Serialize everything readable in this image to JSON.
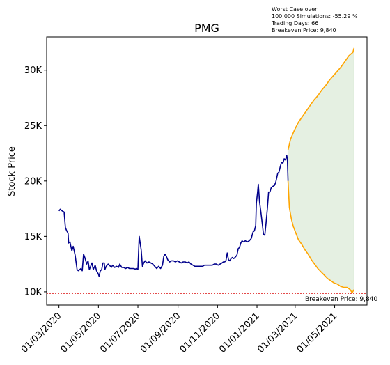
{
  "chart_data": {
    "type": "line",
    "title": "PMG",
    "ylabel": "Stock Price",
    "xlabel": "",
    "annotation_lines": [
      "Worst Case over",
      "100,000 Simulations: -55.29 %",
      "Trading Days: 66",
      "Breakeven Price: 9,840"
    ],
    "breakeven_label": "Breakeven Price: 9,840",
    "breakeven_price": 9840,
    "ylim": [
      8800,
      33000
    ],
    "xlim": [
      "2020-02-11",
      "2021-06-20"
    ],
    "grid": false,
    "y_ticks": [
      {
        "value": 10000,
        "label": "10K"
      },
      {
        "value": 15000,
        "label": "15K"
      },
      {
        "value": 20000,
        "label": "20K"
      },
      {
        "value": 25000,
        "label": "25K"
      },
      {
        "value": 30000,
        "label": "30K"
      }
    ],
    "x_ticks": [
      {
        "date": "2020-03-01",
        "label": "01/03/2020"
      },
      {
        "date": "2020-05-01",
        "label": "01/05/2020"
      },
      {
        "date": "2020-07-01",
        "label": "01/07/2020"
      },
      {
        "date": "2020-09-01",
        "label": "01/09/2020"
      },
      {
        "date": "2020-11-01",
        "label": "01/11/2020"
      },
      {
        "date": "2021-01-01",
        "label": "01/01/2021"
      },
      {
        "date": "2021-03-01",
        "label": "01/03/2021"
      },
      {
        "date": "2021-05-01",
        "label": "01/05/2021"
      }
    ],
    "colors": {
      "history": "#00008b",
      "projection": "#ffa500",
      "band_fill": "#e5f0e2",
      "band_edge": "#b7d7b1",
      "breakeven": "#e03030"
    },
    "series": [
      {
        "values": [
          [
            "2020-03-01",
            17300
          ],
          [
            "2020-03-03",
            17450
          ],
          [
            "2020-03-06",
            17300
          ],
          [
            "2020-03-09",
            17200
          ],
          [
            "2020-03-11",
            15800
          ],
          [
            "2020-03-13",
            15500
          ],
          [
            "2020-03-15",
            15300
          ],
          [
            "2020-03-16",
            14400
          ],
          [
            "2020-03-18",
            14500
          ],
          [
            "2020-03-19",
            14200
          ],
          [
            "2020-03-21",
            13700
          ],
          [
            "2020-03-23",
            14100
          ],
          [
            "2020-03-26",
            13300
          ],
          [
            "2020-03-29",
            12000
          ],
          [
            "2020-03-31",
            11900
          ],
          [
            "2020-04-02",
            12000
          ],
          [
            "2020-04-04",
            12100
          ],
          [
            "2020-04-06",
            11900
          ],
          [
            "2020-04-08",
            13400
          ],
          [
            "2020-04-10",
            13100
          ],
          [
            "2020-04-13",
            12500
          ],
          [
            "2020-04-15",
            12800
          ],
          [
            "2020-04-17",
            12000
          ],
          [
            "2020-04-19",
            12300
          ],
          [
            "2020-04-21",
            12600
          ],
          [
            "2020-04-23",
            12000
          ],
          [
            "2020-04-26",
            12400
          ],
          [
            "2020-04-28",
            11900
          ],
          [
            "2020-05-01",
            11600
          ],
          [
            "2020-05-02",
            11400
          ],
          [
            "2020-05-04",
            11900
          ],
          [
            "2020-05-06",
            12000
          ],
          [
            "2020-05-08",
            12600
          ],
          [
            "2020-05-10",
            12600
          ],
          [
            "2020-05-11",
            12000
          ],
          [
            "2020-05-13",
            12300
          ],
          [
            "2020-05-16",
            12500
          ],
          [
            "2020-05-18",
            12400
          ],
          [
            "2020-05-21",
            12200
          ],
          [
            "2020-05-23",
            12400
          ],
          [
            "2020-05-26",
            12200
          ],
          [
            "2020-05-29",
            12300
          ],
          [
            "2020-06-01",
            12200
          ],
          [
            "2020-06-03",
            12500
          ],
          [
            "2020-06-06",
            12200
          ],
          [
            "2020-06-09",
            12200
          ],
          [
            "2020-06-12",
            12100
          ],
          [
            "2020-06-15",
            12200
          ],
          [
            "2020-06-18",
            12100
          ],
          [
            "2020-06-21",
            12100
          ],
          [
            "2020-06-24",
            12100
          ],
          [
            "2020-06-27",
            12050
          ],
          [
            "2020-06-29",
            12100
          ],
          [
            "2020-07-01",
            12000
          ],
          [
            "2020-07-03",
            15000
          ],
          [
            "2020-07-06",
            13800
          ],
          [
            "2020-07-08",
            12300
          ],
          [
            "2020-07-10",
            12600
          ],
          [
            "2020-07-12",
            12800
          ],
          [
            "2020-07-15",
            12600
          ],
          [
            "2020-07-18",
            12700
          ],
          [
            "2020-07-21",
            12600
          ],
          [
            "2020-07-24",
            12500
          ],
          [
            "2020-07-27",
            12300
          ],
          [
            "2020-07-30",
            12100
          ],
          [
            "2020-08-02",
            12300
          ],
          [
            "2020-08-05",
            12100
          ],
          [
            "2020-08-08",
            12400
          ],
          [
            "2020-08-10",
            13200
          ],
          [
            "2020-08-12",
            13400
          ],
          [
            "2020-08-14",
            13200
          ],
          [
            "2020-08-16",
            12900
          ],
          [
            "2020-08-19",
            12700
          ],
          [
            "2020-08-22",
            12800
          ],
          [
            "2020-08-25",
            12800
          ],
          [
            "2020-08-28",
            12700
          ],
          [
            "2020-08-31",
            12800
          ],
          [
            "2020-09-03",
            12700
          ],
          [
            "2020-09-06",
            12600
          ],
          [
            "2020-09-09",
            12700
          ],
          [
            "2020-09-12",
            12700
          ],
          [
            "2020-09-15",
            12600
          ],
          [
            "2020-09-18",
            12700
          ],
          [
            "2020-09-21",
            12500
          ],
          [
            "2020-09-24",
            12400
          ],
          [
            "2020-09-27",
            12300
          ],
          [
            "2020-09-30",
            12300
          ],
          [
            "2020-10-03",
            12300
          ],
          [
            "2020-10-06",
            12300
          ],
          [
            "2020-10-09",
            12300
          ],
          [
            "2020-10-12",
            12400
          ],
          [
            "2020-10-15",
            12400
          ],
          [
            "2020-10-18",
            12400
          ],
          [
            "2020-10-21",
            12400
          ],
          [
            "2020-10-24",
            12400
          ],
          [
            "2020-10-27",
            12500
          ],
          [
            "2020-10-30",
            12500
          ],
          [
            "2020-11-02",
            12400
          ],
          [
            "2020-11-05",
            12500
          ],
          [
            "2020-11-08",
            12600
          ],
          [
            "2020-11-10",
            12700
          ],
          [
            "2020-11-12",
            12700
          ],
          [
            "2020-11-14",
            12800
          ],
          [
            "2020-11-16",
            13500
          ],
          [
            "2020-11-18",
            12900
          ],
          [
            "2020-11-20",
            12800
          ],
          [
            "2020-11-22",
            13000
          ],
          [
            "2020-11-24",
            13100
          ],
          [
            "2020-11-26",
            13000
          ],
          [
            "2020-11-28",
            13100
          ],
          [
            "2020-12-01",
            13300
          ],
          [
            "2020-12-03",
            13900
          ],
          [
            "2020-12-05",
            14000
          ],
          [
            "2020-12-07",
            14400
          ],
          [
            "2020-12-09",
            14600
          ],
          [
            "2020-12-11",
            14500
          ],
          [
            "2020-12-14",
            14600
          ],
          [
            "2020-12-17",
            14500
          ],
          [
            "2020-12-20",
            14600
          ],
          [
            "2020-12-23",
            14800
          ],
          [
            "2020-12-26",
            15400
          ],
          [
            "2020-12-28",
            15500
          ],
          [
            "2020-12-30",
            16000
          ],
          [
            "2020-12-31",
            18000
          ],
          [
            "2021-01-02",
            19000
          ],
          [
            "2021-01-03",
            19700
          ],
          [
            "2021-01-05",
            18100
          ],
          [
            "2021-01-07",
            17200
          ],
          [
            "2021-01-09",
            16200
          ],
          [
            "2021-01-11",
            15200
          ],
          [
            "2021-01-13",
            15100
          ],
          [
            "2021-01-15",
            16200
          ],
          [
            "2021-01-17",
            17500
          ],
          [
            "2021-01-19",
            19000
          ],
          [
            "2021-01-21",
            19000
          ],
          [
            "2021-01-23",
            19400
          ],
          [
            "2021-01-25",
            19500
          ],
          [
            "2021-01-28",
            19600
          ],
          [
            "2021-01-30",
            19900
          ],
          [
            "2021-02-02",
            20700
          ],
          [
            "2021-02-04",
            20800
          ],
          [
            "2021-02-06",
            21300
          ],
          [
            "2021-02-08",
            21700
          ],
          [
            "2021-02-10",
            21600
          ],
          [
            "2021-02-12",
            22000
          ],
          [
            "2021-02-14",
            21900
          ],
          [
            "2021-02-16",
            22300
          ],
          [
            "2021-02-17",
            21900
          ],
          [
            "2021-02-18",
            20000
          ]
        ]
      },
      {
        "values": [
          [
            "2021-02-18",
            22800
          ],
          [
            "2021-02-22",
            23800
          ],
          [
            "2021-02-28",
            24600
          ],
          [
            "2021-03-06",
            25300
          ],
          [
            "2021-03-12",
            25800
          ],
          [
            "2021-03-18",
            26300
          ],
          [
            "2021-03-24",
            26800
          ],
          [
            "2021-03-30",
            27300
          ],
          [
            "2021-04-05",
            27700
          ],
          [
            "2021-04-11",
            28200
          ],
          [
            "2021-04-17",
            28600
          ],
          [
            "2021-04-23",
            29100
          ],
          [
            "2021-04-29",
            29500
          ],
          [
            "2021-05-05",
            29900
          ],
          [
            "2021-05-11",
            30300
          ],
          [
            "2021-05-17",
            30800
          ],
          [
            "2021-05-23",
            31300
          ],
          [
            "2021-05-29",
            31600
          ],
          [
            "2021-05-31",
            32000
          ]
        ]
      },
      {
        "values": [
          [
            "2021-02-18",
            20000
          ],
          [
            "2021-02-20",
            17600
          ],
          [
            "2021-02-23",
            16600
          ],
          [
            "2021-02-26",
            15900
          ],
          [
            "2021-03-02",
            15300
          ],
          [
            "2021-03-06",
            14700
          ],
          [
            "2021-03-11",
            14300
          ],
          [
            "2021-03-16",
            13800
          ],
          [
            "2021-03-21",
            13400
          ],
          [
            "2021-03-26",
            12900
          ],
          [
            "2021-03-31",
            12500
          ],
          [
            "2021-04-05",
            12100
          ],
          [
            "2021-04-10",
            11800
          ],
          [
            "2021-04-15",
            11500
          ],
          [
            "2021-04-20",
            11200
          ],
          [
            "2021-04-25",
            11000
          ],
          [
            "2021-04-30",
            10800
          ],
          [
            "2021-05-05",
            10700
          ],
          [
            "2021-05-10",
            10500
          ],
          [
            "2021-05-15",
            10400
          ],
          [
            "2021-05-20",
            10400
          ],
          [
            "2021-05-25",
            10200
          ],
          [
            "2021-05-28",
            9900
          ],
          [
            "2021-05-31",
            10200
          ]
        ]
      }
    ]
  }
}
